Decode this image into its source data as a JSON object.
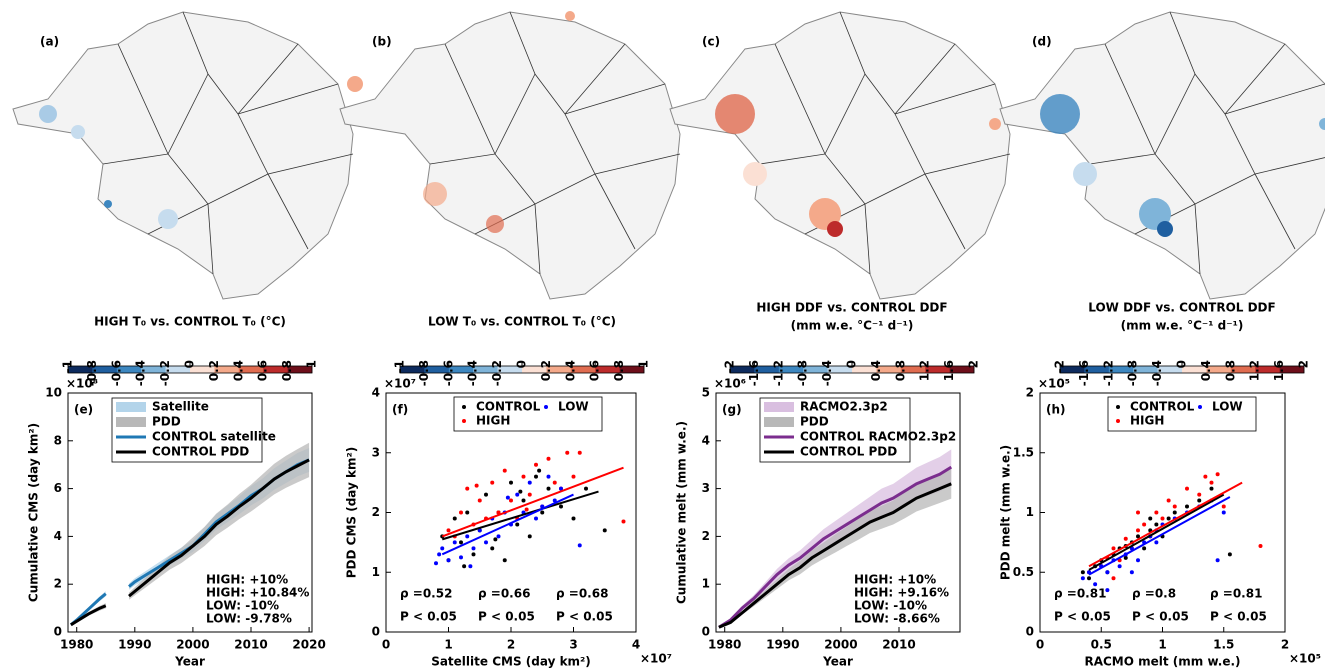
{
  "chart_data": [
    {
      "type": "map",
      "panel": "(a)",
      "colorbar_label": [
        "HIGH T₀ vs. CONTROL T₀ (°C)"
      ],
      "colorbar_lim": [
        -1,
        1
      ],
      "colorbar_ticks": [
        -1,
        -0.8,
        -0.6,
        -0.4,
        -0.2,
        0,
        0.2,
        0.4,
        0.6,
        0.8,
        1
      ],
      "colorbar_colors": [
        "#0d2b5e",
        "#1f5fa0",
        "#3d87c0",
        "#7fb4d9",
        "#c6dcee",
        "#fbe0d4",
        "#f4a98a",
        "#e06c50",
        "#bd2b2b",
        "#6e0f1a"
      ]
    },
    {
      "type": "map",
      "panel": "(b)",
      "colorbar_label": [
        "LOW T₀ vs. CONTROL T₀ (°C)"
      ],
      "colorbar_lim": [
        -1,
        1
      ],
      "colorbar_ticks": [
        -1,
        -0.8,
        -0.6,
        -0.4,
        -0.2,
        0,
        0.2,
        0.4,
        0.6,
        0.8,
        1
      ],
      "colorbar_colors": [
        "#0d2b5e",
        "#1f5fa0",
        "#3d87c0",
        "#7fb4d9",
        "#c6dcee",
        "#fbe0d4",
        "#f4a98a",
        "#e06c50",
        "#bd2b2b",
        "#6e0f1a"
      ]
    },
    {
      "type": "map",
      "panel": "(c)",
      "colorbar_label": [
        "HIGH DDF vs. CONTROL DDF",
        "(mm w.e. °C⁻¹ d⁻¹)"
      ],
      "colorbar_lim": [
        -2,
        2
      ],
      "colorbar_ticks": [
        -2,
        -1.6,
        -1.2,
        -0.8,
        -0.4,
        0,
        0.4,
        0.8,
        1.2,
        1.6,
        2
      ],
      "colorbar_colors": [
        "#0d2b5e",
        "#1f5fa0",
        "#3d87c0",
        "#7fb4d9",
        "#c6dcee",
        "#fbe0d4",
        "#f4a98a",
        "#e06c50",
        "#bd2b2b",
        "#6e0f1a"
      ]
    },
    {
      "type": "map",
      "panel": "(d)",
      "colorbar_label": [
        "LOW DDF vs. CONTROL DDF",
        "(mm w.e. °C⁻¹ d⁻¹)"
      ],
      "colorbar_lim": [
        -2,
        2
      ],
      "colorbar_ticks": [
        -2,
        -1.6,
        -1.2,
        -0.8,
        -0.4,
        0,
        0.4,
        0.8,
        1.2,
        1.6,
        2
      ],
      "colorbar_colors": [
        "#0d2b5e",
        "#1f5fa0",
        "#3d87c0",
        "#7fb4d9",
        "#c6dcee",
        "#fbe0d4",
        "#f4a98a",
        "#e06c50",
        "#bd2b2b",
        "#6e0f1a"
      ]
    },
    {
      "type": "line",
      "panel": "(e)",
      "x_label": "Year",
      "y_label": "Cumulative CMS (day km²)",
      "y_multiplier": "×10⁸",
      "xlim": [
        1978.5,
        2020.5
      ],
      "xticks": [
        1980,
        1990,
        2000,
        2010,
        2020
      ],
      "ylim": [
        0,
        10
      ],
      "yticks": [
        0,
        2,
        4,
        6,
        8,
        10
      ],
      "x": [
        1979,
        1980,
        1982,
        1984,
        1985,
        1987,
        1989,
        1990,
        1992,
        1994,
        1996,
        1998,
        2000,
        2002,
        2004,
        2006,
        2008,
        2010,
        2012,
        2014,
        2016,
        2018,
        2020
      ],
      "series": [
        {
          "name": "Satellite",
          "color": "#b3d4ea",
          "kind": "band",
          "upper": [
            0.32,
            0.54,
            1.02,
            1.5,
            1.71,
            null,
            2.03,
            2.25,
            2.57,
            2.89,
            3.21,
            3.53,
            3.85,
            4.39,
            4.92,
            5.3,
            5.67,
            6.1,
            6.42,
            6.85,
            7.17,
            7.49,
            7.7
          ],
          "lower": [
            0.28,
            0.47,
            0.88,
            1.3,
            1.49,
            null,
            1.77,
            1.95,
            2.23,
            2.51,
            2.79,
            3.07,
            3.35,
            3.81,
            4.28,
            4.6,
            4.93,
            5.3,
            5.58,
            5.95,
            6.23,
            6.51,
            6.7
          ]
        },
        {
          "name": "PDD",
          "color": "#b8b8b8",
          "kind": "band",
          "upper": [
            0.33,
            0.5,
            0.83,
            1.1,
            1.21,
            null,
            1.65,
            1.87,
            2.31,
            2.75,
            3.19,
            3.52,
            3.96,
            4.4,
            4.95,
            5.34,
            5.78,
            6.16,
            6.6,
            7.04,
            7.37,
            7.65,
            7.92
          ],
          "lower": [
            0.27,
            0.41,
            0.68,
            0.9,
            0.99,
            null,
            1.35,
            1.53,
            1.89,
            2.25,
            2.61,
            2.88,
            3.24,
            3.6,
            4.05,
            4.37,
            4.73,
            5.04,
            5.4,
            5.76,
            6.03,
            6.26,
            6.48
          ]
        },
        {
          "name": "CONTROL satellite",
          "color": "#1f78b4",
          "values": [
            0.3,
            0.5,
            0.95,
            1.4,
            1.6,
            null,
            1.9,
            2.1,
            2.4,
            2.7,
            3.0,
            3.3,
            3.6,
            4.1,
            4.6,
            4.95,
            5.3,
            5.7,
            6.0,
            6.4,
            6.7,
            7.0,
            7.2
          ]
        },
        {
          "name": "CONTROL PDD",
          "color": "#000000",
          "values": [
            0.3,
            0.45,
            0.75,
            1.0,
            1.1,
            null,
            1.5,
            1.7,
            2.1,
            2.5,
            2.9,
            3.2,
            3.6,
            4.0,
            4.5,
            4.85,
            5.25,
            5.6,
            6.0,
            6.4,
            6.7,
            6.95,
            7.2
          ]
        }
      ],
      "annotations": [
        {
          "text": "HIGH: +10%",
          "color": "#1f78b4"
        },
        {
          "text": "HIGH: +10.84%",
          "color": "#000000"
        },
        {
          "text": "LOW:  -10%",
          "color": "#1f78b4"
        },
        {
          "text": "LOW:  -9.78%",
          "color": "#000000"
        }
      ]
    },
    {
      "type": "scatter",
      "panel": "(f)",
      "x_label": "Satellite CMS (day km²)",
      "y_label": "PDD CMS (day km²)",
      "x_multiplier": "×10⁷",
      "y_multiplier": "×10⁷",
      "xlim": [
        0,
        4
      ],
      "xticks": [
        0,
        1,
        2,
        3,
        4
      ],
      "ylim": [
        0,
        4
      ],
      "yticks": [
        0,
        1,
        2,
        3,
        4
      ],
      "series": [
        {
          "name": "CONTROL",
          "color": "#000000",
          "x": [
            0.9,
            1.0,
            1.1,
            1.2,
            1.3,
            1.4,
            1.5,
            1.6,
            1.7,
            1.8,
            1.9,
            2.0,
            2.1,
            2.2,
            2.3,
            2.4,
            2.5,
            2.6,
            2.8,
            3.0,
            3.2,
            3.5,
            1.25,
            1.75,
            2.15,
            2.45
          ],
          "values": [
            1.6,
            1.2,
            1.9,
            1.5,
            2.0,
            1.3,
            1.7,
            2.3,
            1.4,
            2.0,
            1.2,
            2.5,
            1.8,
            2.2,
            1.6,
            2.6,
            2.0,
            2.4,
            2.1,
            1.9,
            2.4,
            1.7,
            1.1,
            1.55,
            2.35,
            2.7
          ],
          "fit_x": [
            0.9,
            3.4
          ],
          "fit_y": [
            1.55,
            2.35
          ]
        },
        {
          "name": "HIGH",
          "color": "#ff0000",
          "x": [
            1.0,
            1.1,
            1.2,
            1.3,
            1.4,
            1.5,
            1.6,
            1.7,
            1.8,
            1.9,
            2.0,
            2.1,
            2.2,
            2.3,
            2.4,
            2.5,
            2.6,
            2.7,
            2.8,
            2.9,
            3.0,
            3.1,
            3.8,
            1.45,
            2.25
          ],
          "values": [
            1.7,
            1.6,
            2.0,
            2.4,
            1.8,
            2.2,
            1.9,
            2.5,
            2.0,
            2.7,
            2.2,
            1.9,
            2.6,
            2.3,
            2.8,
            2.1,
            2.9,
            2.5,
            2.4,
            3.0,
            2.6,
            3.0,
            1.85,
            2.45,
            2.05
          ],
          "fit_x": [
            0.9,
            3.8
          ],
          "fit_y": [
            1.6,
            2.75
          ]
        },
        {
          "name": "LOW",
          "color": "#0000ff",
          "x": [
            0.8,
            0.85,
            0.9,
            1.0,
            1.1,
            1.2,
            1.3,
            1.4,
            1.5,
            1.6,
            1.7,
            1.8,
            1.9,
            2.0,
            2.1,
            2.2,
            2.3,
            2.4,
            2.5,
            2.6,
            2.7,
            2.8,
            3.1,
            1.35,
            1.95
          ],
          "values": [
            1.15,
            1.3,
            1.4,
            1.2,
            1.5,
            1.25,
            1.6,
            1.4,
            1.7,
            1.5,
            1.9,
            1.6,
            2.0,
            1.8,
            2.3,
            2.0,
            2.5,
            1.9,
            2.1,
            2.6,
            2.2,
            2.4,
            1.45,
            1.1,
            2.25
          ],
          "fit_x": [
            0.9,
            3.0
          ],
          "fit_y": [
            1.3,
            2.3
          ]
        }
      ],
      "stats": [
        {
          "rho": "ρ =0.52",
          "p": "P < 0.05",
          "color": "#000000"
        },
        {
          "rho": "ρ =0.66",
          "p": "P < 0.05",
          "color": "#ff0000"
        },
        {
          "rho": "ρ =0.68",
          "p": "P < 0.05",
          "color": "#0000ff"
        }
      ]
    },
    {
      "type": "line",
      "panel": "(g)",
      "x_label": "Year",
      "y_label": "Cumulative melt (mm w.e.)",
      "y_multiplier": "×10⁶",
      "xlim": [
        1978.5,
        2020.5
      ],
      "xticks": [
        1980,
        1990,
        2000,
        2010
      ],
      "ylim": [
        0,
        5
      ],
      "yticks": [
        0,
        1,
        2,
        3,
        4,
        5
      ],
      "x": [
        1979,
        1981,
        1983,
        1985,
        1987,
        1989,
        1991,
        1993,
        1995,
        1997,
        1999,
        2001,
        2003,
        2005,
        2007,
        2009,
        2011,
        2013,
        2015,
        2017,
        2019
      ],
      "series": [
        {
          "name": "RACMO2.3p2",
          "color": "#d9bfe0",
          "kind": "band",
          "upper": [
            0.11,
            0.28,
            0.55,
            0.77,
            1.04,
            1.32,
            1.54,
            1.71,
            1.93,
            2.15,
            2.32,
            2.49,
            2.66,
            2.83,
            3.0,
            3.1,
            3.27,
            3.44,
            3.55,
            3.66,
            3.82
          ],
          "lower": [
            0.09,
            0.22,
            0.45,
            0.63,
            0.86,
            1.08,
            1.26,
            1.39,
            1.57,
            1.75,
            1.88,
            2.01,
            2.14,
            2.27,
            2.4,
            2.5,
            2.63,
            2.76,
            2.85,
            2.94,
            3.08
          ]
        },
        {
          "name": "PDD",
          "color": "#b8b8b8",
          "kind": "band",
          "upper": [
            0.11,
            0.22,
            0.44,
            0.66,
            0.88,
            1.1,
            1.32,
            1.49,
            1.71,
            1.87,
            2.04,
            2.2,
            2.37,
            2.53,
            2.64,
            2.75,
            2.92,
            3.08,
            3.19,
            3.3,
            3.41
          ],
          "lower": [
            0.09,
            0.18,
            0.36,
            0.54,
            0.72,
            0.9,
            1.08,
            1.21,
            1.39,
            1.53,
            1.66,
            1.8,
            1.93,
            2.07,
            2.16,
            2.25,
            2.38,
            2.52,
            2.61,
            2.7,
            2.79
          ]
        },
        {
          "name": "CONTROL RACMO2.3p2",
          "color": "#7b2d8e",
          "values": [
            0.1,
            0.25,
            0.5,
            0.7,
            0.95,
            1.2,
            1.4,
            1.55,
            1.75,
            1.95,
            2.1,
            2.25,
            2.4,
            2.55,
            2.7,
            2.8,
            2.95,
            3.1,
            3.2,
            3.3,
            3.45
          ]
        },
        {
          "name": "CONTROL PDD",
          "color": "#000000",
          "values": [
            0.1,
            0.2,
            0.4,
            0.6,
            0.8,
            1.0,
            1.2,
            1.35,
            1.55,
            1.7,
            1.85,
            2.0,
            2.15,
            2.3,
            2.4,
            2.5,
            2.65,
            2.8,
            2.9,
            3.0,
            3.1
          ]
        }
      ],
      "annotations": [
        {
          "text": "HIGH: +10%",
          "color": "#7b2d8e"
        },
        {
          "text": "HIGH: +9.16%",
          "color": "#000000"
        },
        {
          "text": "LOW:  -10%",
          "color": "#7b2d8e"
        },
        {
          "text": "LOW:  -8.66%",
          "color": "#000000"
        }
      ]
    },
    {
      "type": "scatter",
      "panel": "(h)",
      "x_label": "RACMO melt (mm w.e.)",
      "y_label": "PDD melt (mm w.e.)",
      "x_multiplier": "×10⁵",
      "y_multiplier": "×10⁵",
      "xlim": [
        0,
        2
      ],
      "xticks": [
        0,
        0.5,
        1,
        1.5,
        2
      ],
      "ylim": [
        0,
        2
      ],
      "yticks": [
        0,
        0.5,
        1,
        1.5,
        2
      ],
      "series": [
        {
          "name": "CONTROL",
          "color": "#000000",
          "x": [
            0.35,
            0.4,
            0.45,
            0.5,
            0.55,
            0.6,
            0.65,
            0.7,
            0.75,
            0.8,
            0.85,
            0.9,
            0.95,
            1.0,
            1.05,
            1.1,
            1.2,
            1.3,
            1.4,
            1.55,
            0.5,
            0.7,
            0.9
          ],
          "values": [
            0.5,
            0.45,
            0.55,
            0.6,
            0.5,
            0.65,
            0.7,
            0.62,
            0.75,
            0.8,
            0.7,
            0.85,
            0.9,
            0.8,
            0.95,
            1.0,
            1.05,
            1.1,
            1.2,
            0.65,
            0.55,
            0.72,
            0.95
          ],
          "fit_x": [
            0.4,
            1.5
          ],
          "fit_y": [
            0.52,
            1.15
          ]
        },
        {
          "name": "HIGH",
          "color": "#ff0000",
          "x": [
            0.4,
            0.5,
            0.55,
            0.6,
            0.65,
            0.7,
            0.75,
            0.8,
            0.85,
            0.9,
            0.95,
            1.0,
            1.05,
            1.1,
            1.2,
            1.3,
            1.35,
            1.4,
            1.45,
            1.5,
            1.8,
            0.6,
            0.8
          ],
          "values": [
            0.5,
            0.55,
            0.62,
            0.7,
            0.6,
            0.78,
            0.7,
            0.85,
            0.9,
            0.8,
            1.0,
            0.95,
            1.1,
            1.05,
            1.2,
            1.15,
            1.3,
            1.25,
            1.32,
            1.05,
            0.72,
            0.45,
            1.0
          ],
          "fit_x": [
            0.4,
            1.65
          ],
          "fit_y": [
            0.55,
            1.25
          ]
        },
        {
          "name": "LOW",
          "color": "#0000ff",
          "x": [
            0.35,
            0.4,
            0.45,
            0.5,
            0.55,
            0.6,
            0.65,
            0.7,
            0.75,
            0.8,
            0.85,
            0.9,
            0.95,
            1.0,
            1.1,
            1.2,
            1.3,
            1.4,
            1.45,
            1.5,
            0.55,
            0.75,
            0.95
          ],
          "values": [
            0.45,
            0.5,
            0.4,
            0.55,
            0.5,
            0.6,
            0.55,
            0.65,
            0.7,
            0.6,
            0.75,
            0.8,
            0.75,
            0.9,
            0.95,
            1.0,
            1.05,
            1.1,
            0.6,
            1.0,
            0.35,
            0.5,
            0.85
          ],
          "fit_x": [
            0.4,
            1.55
          ],
          "fit_y": [
            0.48,
            1.13
          ]
        }
      ],
      "stats": [
        {
          "rho": "ρ =0.81",
          "p": "P < 0.05",
          "color": "#000000"
        },
        {
          "rho": "ρ =0.8",
          "p": "P < 0.05",
          "color": "#ff0000"
        },
        {
          "rho": "ρ =0.81",
          "p": "P < 0.05",
          "color": "#0000ff"
        }
      ]
    }
  ]
}
